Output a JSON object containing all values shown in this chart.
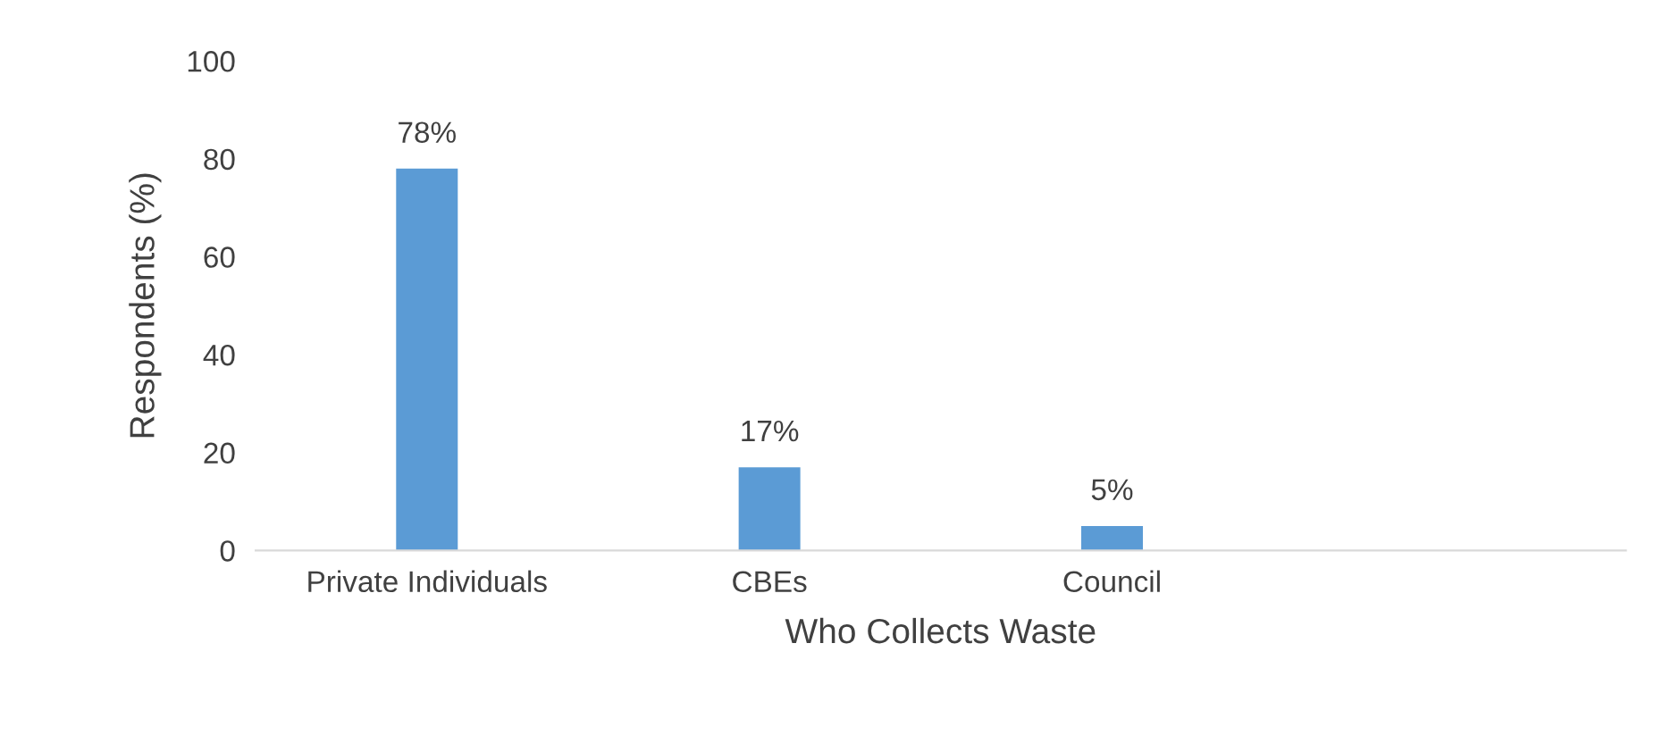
{
  "chart_data": {
    "type": "bar",
    "xlabel": "Who Collects Waste",
    "ylabel": "Respondents (%)",
    "categories": [
      "Private Individuals",
      "CBEs",
      "Council",
      null
    ],
    "values": [
      78,
      17,
      5,
      null
    ],
    "value_labels": [
      "78%",
      "17%",
      "5%",
      null
    ],
    "color": "#5b9bd5",
    "ylim": [
      0,
      100
    ],
    "yticks": [
      0,
      20,
      40,
      60,
      80,
      100
    ],
    "grid": false,
    "legend": false
  }
}
